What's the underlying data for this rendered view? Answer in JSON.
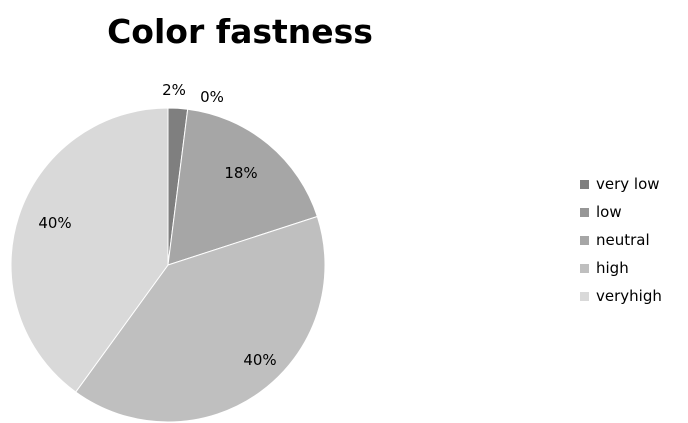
{
  "chart_data": {
    "type": "pie",
    "title": "Color fastness",
    "categories": [
      "very low",
      "low",
      "neutral",
      "high",
      "veryhigh"
    ],
    "values": [
      2,
      0,
      18,
      40,
      40
    ],
    "labels": [
      "2%",
      "0%",
      "18%",
      "40%",
      "40%"
    ],
    "colors": [
      "#7f7f7f",
      "#969696",
      "#a6a6a6",
      "#bfbfbf",
      "#d9d9d9"
    ],
    "legend": "right",
    "start_angle_deg": 0,
    "direction": "clockwise"
  }
}
